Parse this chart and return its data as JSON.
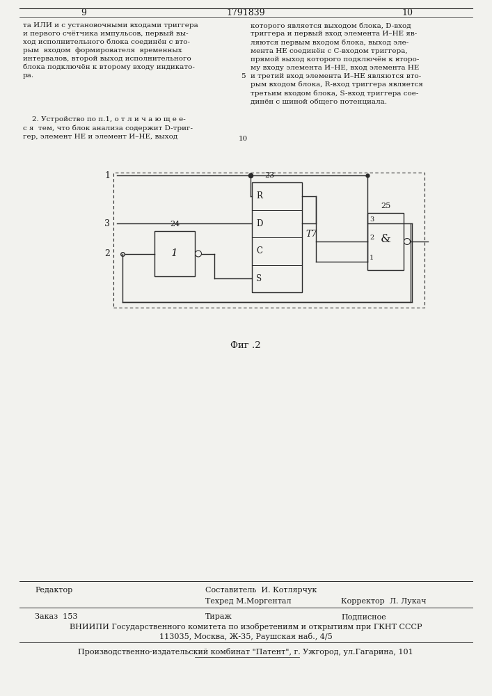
{
  "page_num_left": "9",
  "page_num_center": "1791839",
  "page_num_right": "10",
  "text_left_col1": "та ИЛИ и с установочными входами триггера\nи первого счётчика импульсов, первый вы-\nход исполнительного блока соединён с вто-\nрым  входом  формирователя  временных\nинтервалов, второй выход исполнительного\nблока подключён к второму входу индикато-\nра.",
  "text_left_col2": "    2. Устройство по п.1, о т л и ч а ю щ е е-\nс я  тем, что блок анализа содержит D-триг-\nгер, элемент НЕ и элемент И–НЕ, выход",
  "text_right_col1": "которого является выходом блока, D-вход\nтриггера и первый вход элемента И–НЕ яв-\nляются первым входом блока, выход эле-\nмента НЕ соединён с С-входом триггера,\nпрямой выход которого подключён к второ-\nму входу элемента И–НЕ, вход элемента НЕ\nи третий вход элемента И–НЕ являются вто-\nрым входом блока, R-вход триггера является\nтретьим входом блока, S-вход триггера сое-\nдинён с шиной общего потенциала.",
  "fig_label": "Фиг .2",
  "footer_editor_label": "Редактор",
  "footer_compiler": "Составитель  И. Котлярчук",
  "footer_techred": "Техред М.Моргентал",
  "footer_corrector": "Корректор  Л. Лукач",
  "footer_order": "Заказ  153",
  "footer_tirazh": "Тираж",
  "footer_podpisnoe": "Подписное",
  "footer_vniipи": "ВНИИПИ Государственного комитета по изобретениям и открытиям при ГКНТ СССР",
  "footer_address": "113035, Москва, Ж-35, Раушская наб., 4/5",
  "footer_patent": "Производственно-издательский комбинат \"Патент\", г. Ужгород, ул.Гагарина, 101",
  "bg_color": "#f2f2ee",
  "text_color": "#1a1a1a",
  "line_color": "#2a2a2a"
}
